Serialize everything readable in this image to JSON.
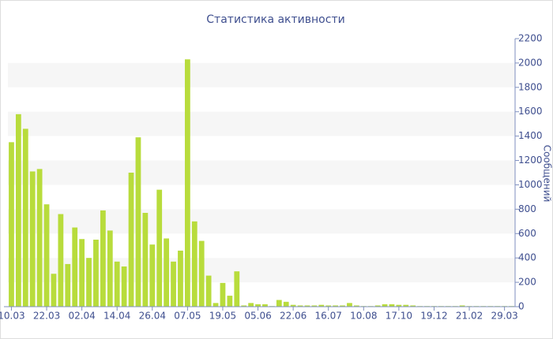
{
  "chart_data": {
    "type": "bar",
    "title": "Статистика активности",
    "y_label": "Сообщений",
    "categories": [
      "10.03",
      null,
      null,
      null,
      null,
      "22.03",
      null,
      null,
      null,
      null,
      "02.04",
      null,
      null,
      null,
      null,
      "14.04",
      null,
      null,
      null,
      null,
      "26.04",
      null,
      null,
      null,
      null,
      "07.05",
      null,
      null,
      null,
      null,
      "19.05",
      null,
      null,
      null,
      null,
      "05.06",
      null,
      null,
      null,
      null,
      "22.06",
      null,
      null,
      null,
      null,
      "16.07",
      null,
      null,
      null,
      null,
      "10.08",
      null,
      null,
      null,
      null,
      "17.10",
      null,
      null,
      null,
      null,
      "19.12",
      null,
      null,
      null,
      null,
      "21.02",
      null,
      null,
      null,
      null,
      "29.03",
      null
    ],
    "values": [
      1350,
      1580,
      1460,
      1110,
      1130,
      840,
      270,
      760,
      350,
      650,
      555,
      400,
      550,
      790,
      625,
      370,
      330,
      1100,
      1390,
      770,
      510,
      960,
      560,
      370,
      460,
      2030,
      700,
      540,
      255,
      30,
      195,
      90,
      290,
      10,
      30,
      20,
      20,
      5,
      55,
      40,
      15,
      10,
      10,
      10,
      15,
      10,
      10,
      10,
      30,
      10,
      5,
      5,
      10,
      20,
      20,
      15,
      15,
      10,
      5,
      5,
      5,
      5,
      5,
      5,
      10,
      5,
      5,
      5,
      5,
      5,
      5,
      5
    ],
    "color": "#b8dc3c",
    "ylim": [
      0,
      2200
    ],
    "yticks": [
      0,
      200,
      400,
      600,
      800,
      1000,
      1200,
      1400,
      1600,
      1800,
      2000,
      2200
    ],
    "grid": true
  }
}
